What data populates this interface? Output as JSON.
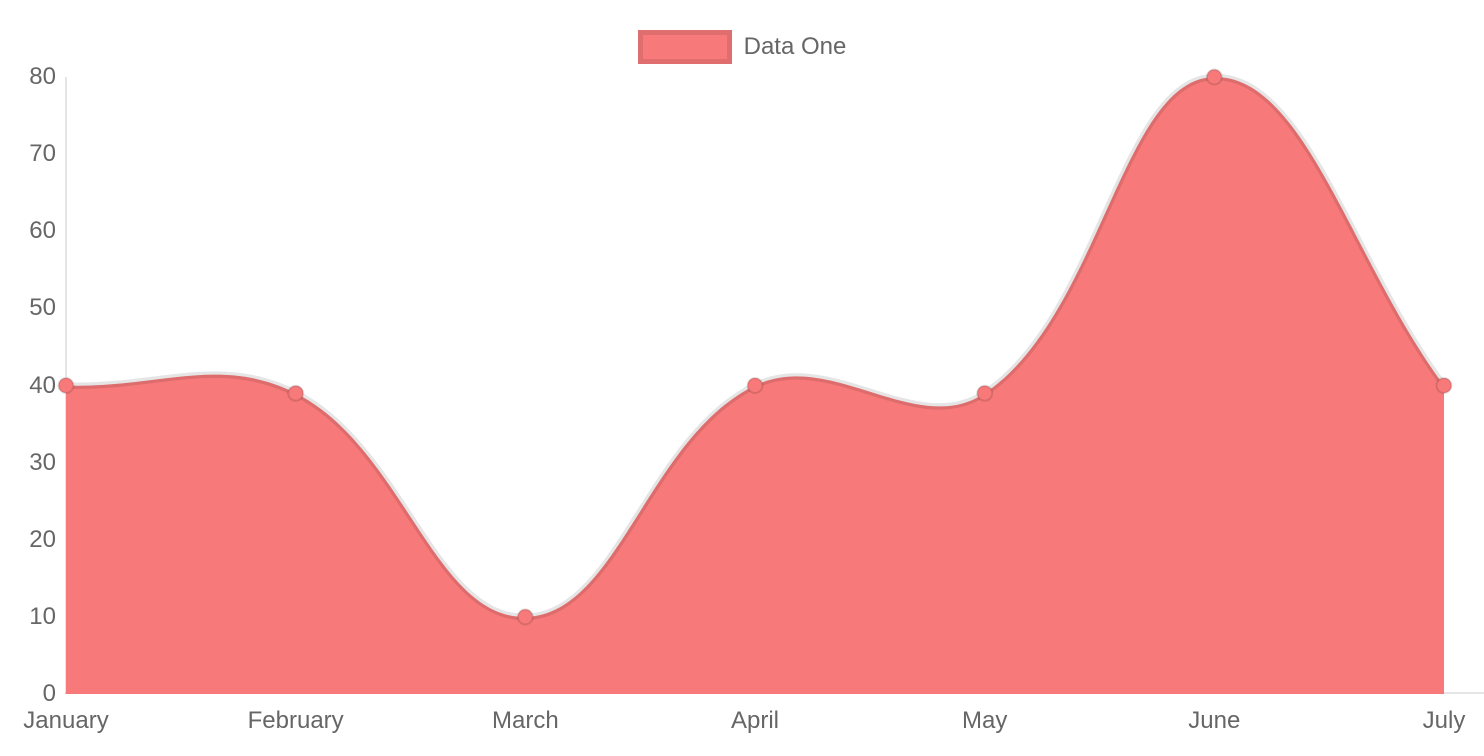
{
  "chart_data": {
    "type": "area",
    "title": "",
    "xlabel": "",
    "ylabel": "",
    "categories": [
      "January",
      "February",
      "March",
      "April",
      "May",
      "June",
      "July"
    ],
    "series": [
      {
        "name": "Data One",
        "values": [
          40,
          39,
          10,
          40,
          39,
          80,
          40
        ],
        "fill_color": "#f87979",
        "line_color": "rgba(0,0,0,0.1)",
        "point_color": "#f87979",
        "point_border_color": "rgba(0,0,0,0.12)"
      }
    ],
    "ylim": [
      0,
      80
    ],
    "y_ticks": [
      "0",
      "10",
      "20",
      "30",
      "40",
      "50",
      "60",
      "70",
      "80"
    ],
    "grid": false,
    "line_style": "smooth-bezier",
    "legend_position": "top-center"
  },
  "legend": {
    "items": [
      {
        "label": "Data One",
        "swatch_color": "#f87979"
      }
    ]
  },
  "axes": {
    "text_color": "#666666",
    "line_color": "rgba(0,0,0,0.1)"
  },
  "background": "#ffffff"
}
